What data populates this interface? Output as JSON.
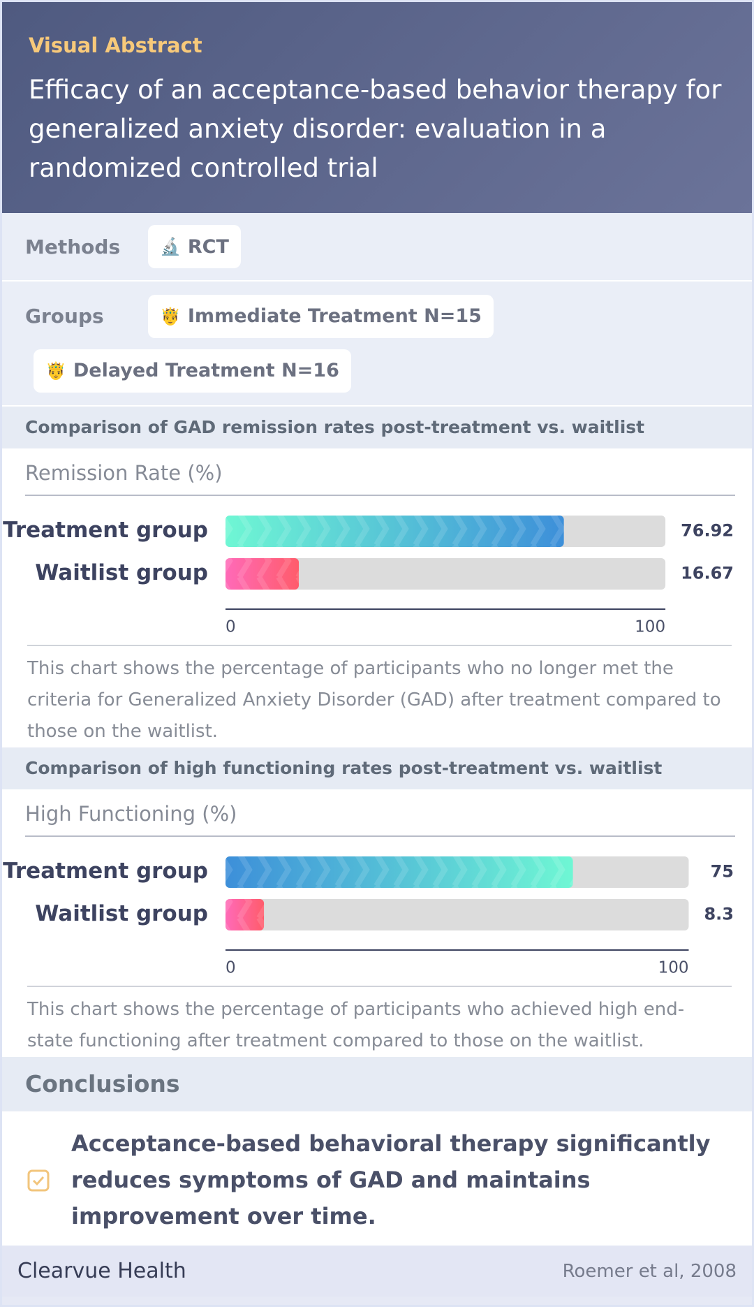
{
  "header": {
    "label": "Visual Abstract",
    "title": "Efficacy of an acceptance-based behavior therapy for generalized anxiety disorder: evaluation in a randomized controlled trial"
  },
  "methods": {
    "label": "Methods",
    "items": [
      {
        "icon": "🔬",
        "text": "RCT"
      }
    ]
  },
  "groups": {
    "label": "Groups",
    "items": [
      {
        "icon": "🤴",
        "text": "Immediate Treatment N=15"
      },
      {
        "icon": "🤴",
        "text": "Delayed Treatment N=16"
      }
    ]
  },
  "charts": [
    {
      "type": "bar",
      "section_title": "Comparison of GAD remission rates post-treatment vs. waitlist",
      "title": "Remission Rate (%)",
      "categories": [
        "Treatment group",
        "Waitlist group"
      ],
      "values": [
        76.92,
        16.67
      ],
      "colors": [
        [
          "#6ff7d4",
          "#3d8fd9"
        ],
        [
          "#ff6ab8",
          "#ff5c6b"
        ]
      ],
      "xlim": [
        0,
        100
      ],
      "xticks": [
        0,
        100
      ],
      "description": "This chart shows the percentage of participants who no longer met the criteria for Generalized Anxiety Disorder (GAD) after treatment compared to those on the waitlist."
    },
    {
      "type": "bar",
      "section_title": "Comparison of high functioning rates post-treatment vs. waitlist",
      "title": "High Functioning (%)",
      "categories": [
        "Treatment group",
        "Waitlist group"
      ],
      "values": [
        75,
        8.3
      ],
      "colors": [
        [
          "#3d8fd9",
          "#6ff7d4"
        ],
        [
          "#ff6ab8",
          "#ff5c6b"
        ]
      ],
      "xlim": [
        0,
        100
      ],
      "xticks": [
        0,
        100
      ],
      "description": "This chart shows the percentage of participants who achieved high end-state functioning after treatment compared to those on the waitlist."
    }
  ],
  "conclusions": {
    "title": "Conclusions",
    "items": [
      "Acceptance-based behavioral therapy significantly reduces symptoms of GAD and maintains improvement over time."
    ]
  },
  "footer": {
    "brand": "Clearvue Health",
    "citation": "Roemer et al, 2008"
  }
}
